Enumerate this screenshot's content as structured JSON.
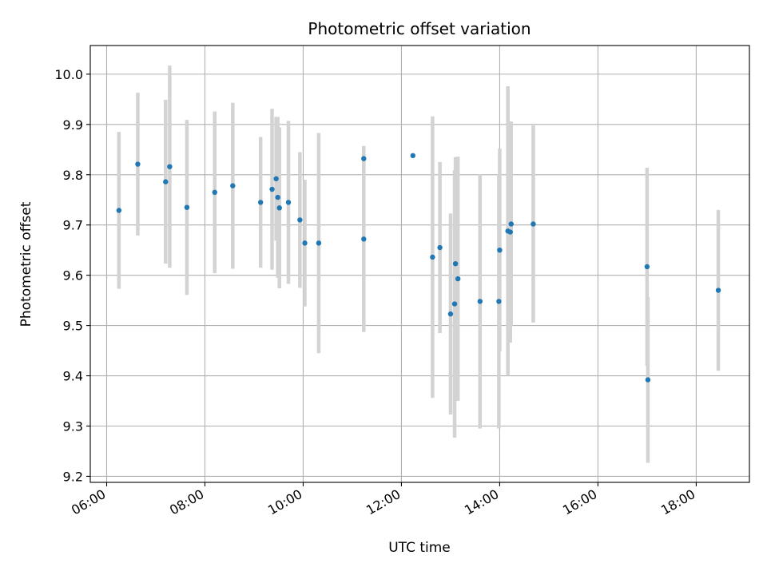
{
  "chart_data": {
    "type": "scatter",
    "title": "Photometric offset variation",
    "xlabel": "UTC time",
    "ylabel": "Photometric offset",
    "x_ticks": [
      "06:00",
      "08:00",
      "10:00",
      "12:00",
      "14:00",
      "16:00",
      "18:00"
    ],
    "y_ticks": [
      "9.2",
      "9.3",
      "9.4",
      "9.5",
      "9.6",
      "9.7",
      "9.8",
      "9.9",
      "10.0"
    ],
    "xlim": [
      "05:40",
      "19:05"
    ],
    "ylim": [
      9.188,
      10.057
    ],
    "grid": true,
    "marker_color": "#1f77b4",
    "errorbar_color": "#d3d3d3",
    "series": [
      {
        "points": [
          {
            "x": "06:15",
            "y": 9.729,
            "err": 0.156
          },
          {
            "x": "06:38",
            "y": 9.821,
            "err": 0.142
          },
          {
            "x": "07:12",
            "y": 9.786,
            "err": 0.163
          },
          {
            "x": "07:17",
            "y": 9.816,
            "err": 0.201
          },
          {
            "x": "07:38",
            "y": 9.735,
            "err": 0.174
          },
          {
            "x": "08:12",
            "y": 9.765,
            "err": 0.161
          },
          {
            "x": "08:34",
            "y": 9.778,
            "err": 0.165
          },
          {
            "x": "09:08",
            "y": 9.745,
            "err": 0.13
          },
          {
            "x": "09:22",
            "y": 9.771,
            "err": 0.16
          },
          {
            "x": "09:27",
            "y": 9.792,
            "err": 0.123
          },
          {
            "x": "09:29",
            "y": 9.755,
            "err": 0.16
          },
          {
            "x": "09:31",
            "y": 9.734,
            "err": 0.16
          },
          {
            "x": "09:42",
            "y": 9.745,
            "err": 0.162
          },
          {
            "x": "09:56",
            "y": 9.71,
            "err": 0.135
          },
          {
            "x": "10:02",
            "y": 9.664,
            "err": 0.126
          },
          {
            "x": "10:19",
            "y": 9.664,
            "err": 0.219
          },
          {
            "x": "11:14",
            "y": 9.832,
            "err": 0.025
          },
          {
            "x": "11:14",
            "y": 9.672,
            "err": 0.185
          },
          {
            "x": "12:14",
            "y": 9.838,
            "err": 0.0
          },
          {
            "x": "12:38",
            "y": 9.636,
            "err": 0.28
          },
          {
            "x": "12:47",
            "y": 9.655,
            "err": 0.17
          },
          {
            "x": "13:00",
            "y": 9.523,
            "err": 0.2
          },
          {
            "x": "13:05",
            "y": 9.543,
            "err": 0.266
          },
          {
            "x": "13:06",
            "y": 9.623,
            "err": 0.212
          },
          {
            "x": "13:09",
            "y": 9.593,
            "err": 0.243
          },
          {
            "x": "13:36",
            "y": 9.548,
            "err": 0.253
          },
          {
            "x": "13:59",
            "y": 9.548,
            "err": 0.253
          },
          {
            "x": "14:00",
            "y": 9.65,
            "err": 0.202
          },
          {
            "x": "14:10",
            "y": 9.688,
            "err": 0.288
          },
          {
            "x": "14:13",
            "y": 9.686,
            "err": 0.22
          },
          {
            "x": "14:14",
            "y": 9.702,
            "err": 0.203
          },
          {
            "x": "14:41",
            "y": 9.702,
            "err": 0.196
          },
          {
            "x": "17:00",
            "y": 9.617,
            "err": 0.197
          },
          {
            "x": "17:01",
            "y": 9.392,
            "err": 0.165
          },
          {
            "x": "18:27",
            "y": 9.57,
            "err": 0.16
          }
        ]
      }
    ]
  }
}
